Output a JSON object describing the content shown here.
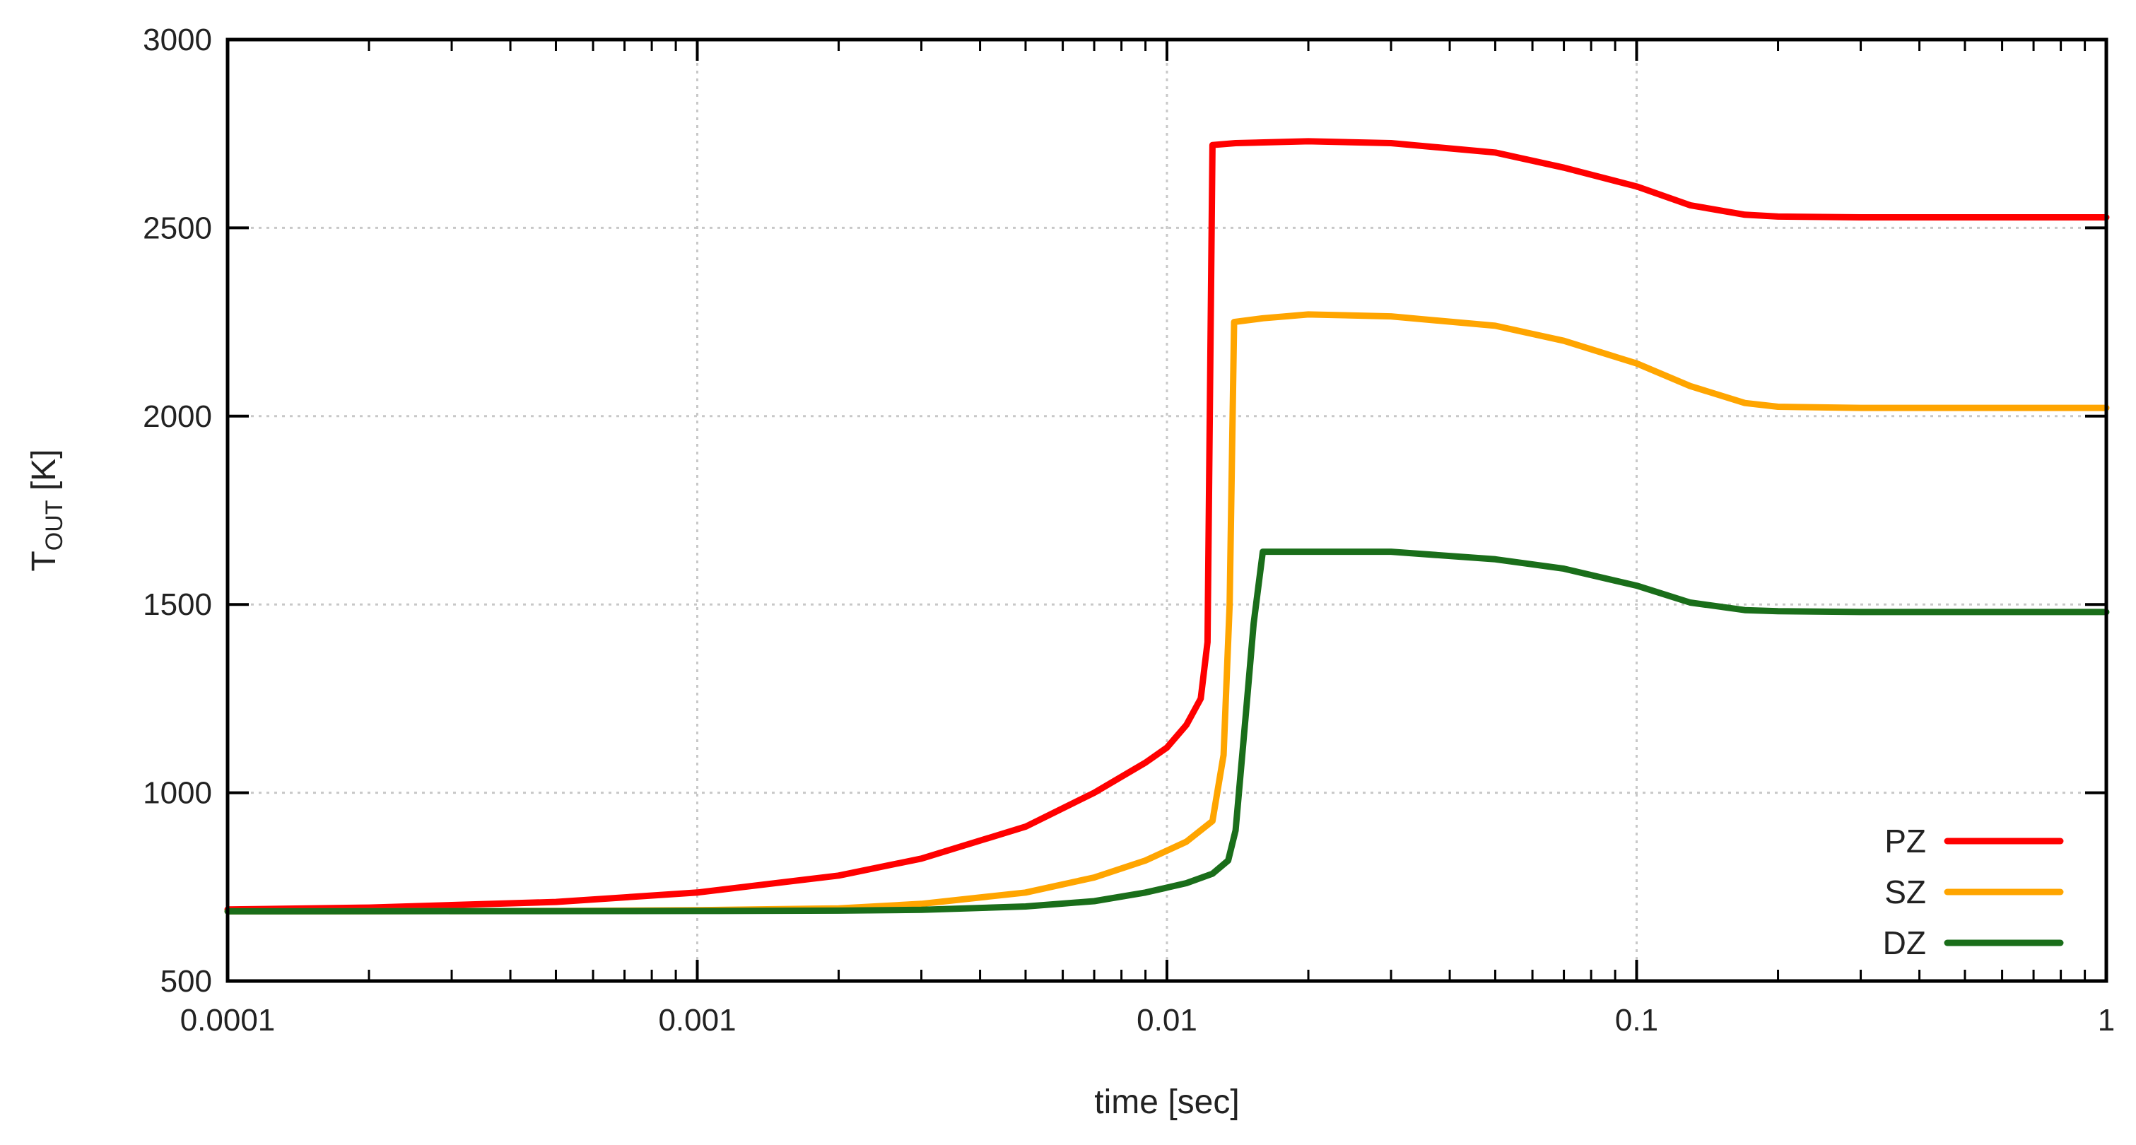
{
  "chart_data": {
    "type": "line",
    "title": "",
    "xlabel": "time [sec]",
    "ylabel": {
      "main": "T",
      "sub": "OUT",
      "unit": " [K]"
    },
    "xscale": "log",
    "xlim": [
      0.0001,
      1
    ],
    "ylim": [
      500,
      3000
    ],
    "xticks": [
      0.0001,
      0.001,
      0.01,
      0.1,
      1
    ],
    "xtick_labels": [
      "0.0001",
      "0.001",
      "0.01",
      "0.1",
      "1"
    ],
    "yticks": [
      500,
      1000,
      1500,
      2000,
      2500,
      3000
    ],
    "ytick_labels": [
      "500",
      "1000",
      "1500",
      "2000",
      "2500",
      "3000"
    ],
    "grid": true,
    "legend_position": "bottom-right",
    "series": [
      {
        "name": "PZ",
        "color": "#ff0000",
        "points": [
          [
            0.0001,
            690
          ],
          [
            0.0002,
            695
          ],
          [
            0.0005,
            710
          ],
          [
            0.001,
            735
          ],
          [
            0.002,
            780
          ],
          [
            0.003,
            825
          ],
          [
            0.005,
            910
          ],
          [
            0.007,
            1000
          ],
          [
            0.009,
            1080
          ],
          [
            0.01,
            1120
          ],
          [
            0.011,
            1180
          ],
          [
            0.0118,
            1250
          ],
          [
            0.0122,
            1400
          ],
          [
            0.0125,
            2720
          ],
          [
            0.014,
            2725
          ],
          [
            0.02,
            2730
          ],
          [
            0.03,
            2725
          ],
          [
            0.05,
            2700
          ],
          [
            0.07,
            2660
          ],
          [
            0.1,
            2610
          ],
          [
            0.13,
            2560
          ],
          [
            0.17,
            2535
          ],
          [
            0.2,
            2530
          ],
          [
            0.3,
            2528
          ],
          [
            1,
            2528
          ]
        ]
      },
      {
        "name": "SZ",
        "color": "#ffa500",
        "points": [
          [
            0.0001,
            685
          ],
          [
            0.0005,
            686
          ],
          [
            0.001,
            688
          ],
          [
            0.002,
            693
          ],
          [
            0.003,
            705
          ],
          [
            0.005,
            735
          ],
          [
            0.007,
            775
          ],
          [
            0.009,
            820
          ],
          [
            0.011,
            870
          ],
          [
            0.0125,
            925
          ],
          [
            0.0132,
            1100
          ],
          [
            0.0136,
            1500
          ],
          [
            0.0139,
            2250
          ],
          [
            0.016,
            2260
          ],
          [
            0.02,
            2270
          ],
          [
            0.03,
            2265
          ],
          [
            0.05,
            2240
          ],
          [
            0.07,
            2200
          ],
          [
            0.1,
            2140
          ],
          [
            0.13,
            2080
          ],
          [
            0.17,
            2035
          ],
          [
            0.2,
            2025
          ],
          [
            0.3,
            2022
          ],
          [
            1,
            2022
          ]
        ]
      },
      {
        "name": "DZ",
        "color": "#1a6e1a",
        "points": [
          [
            0.0001,
            685
          ],
          [
            0.001,
            686
          ],
          [
            0.002,
            687
          ],
          [
            0.003,
            689
          ],
          [
            0.005,
            698
          ],
          [
            0.007,
            712
          ],
          [
            0.009,
            735
          ],
          [
            0.011,
            760
          ],
          [
            0.0125,
            785
          ],
          [
            0.0135,
            820
          ],
          [
            0.014,
            900
          ],
          [
            0.0147,
            1200
          ],
          [
            0.0153,
            1450
          ],
          [
            0.016,
            1640
          ],
          [
            0.02,
            1640
          ],
          [
            0.03,
            1640
          ],
          [
            0.05,
            1620
          ],
          [
            0.07,
            1595
          ],
          [
            0.1,
            1550
          ],
          [
            0.13,
            1505
          ],
          [
            0.17,
            1485
          ],
          [
            0.2,
            1482
          ],
          [
            0.3,
            1480
          ],
          [
            1,
            1480
          ]
        ]
      }
    ]
  }
}
